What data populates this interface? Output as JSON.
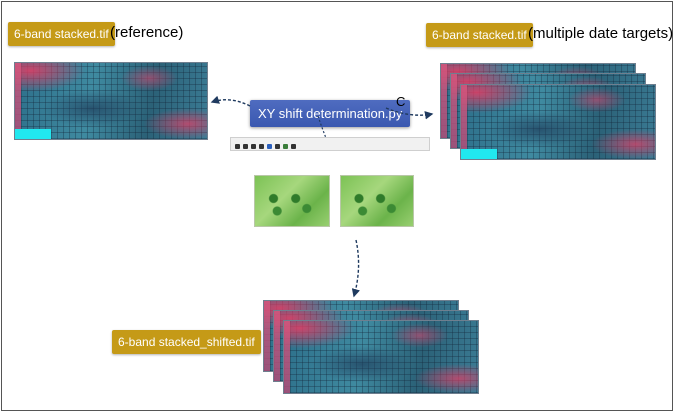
{
  "labels": {
    "reference_file": "6-band stacked.tif",
    "reference_note": "(reference)",
    "target_file": "6-band stacked.tif",
    "target_note": "(multiple date targets)",
    "script_name": "XY shift determination.py",
    "arrow_letter": "C",
    "output_file": "6-band stacked_shifted.tif"
  },
  "colors": {
    "file_tag": "#c59a17",
    "script_box": "#3f5db3",
    "arrow": "#1f3a5f",
    "cyan_mask": "#21e8ef"
  },
  "icons": [
    "home-icon",
    "back-icon",
    "forward-icon",
    "pan-icon",
    "zoom-icon",
    "configure-icon",
    "edit-curve-icon",
    "save-icon"
  ]
}
